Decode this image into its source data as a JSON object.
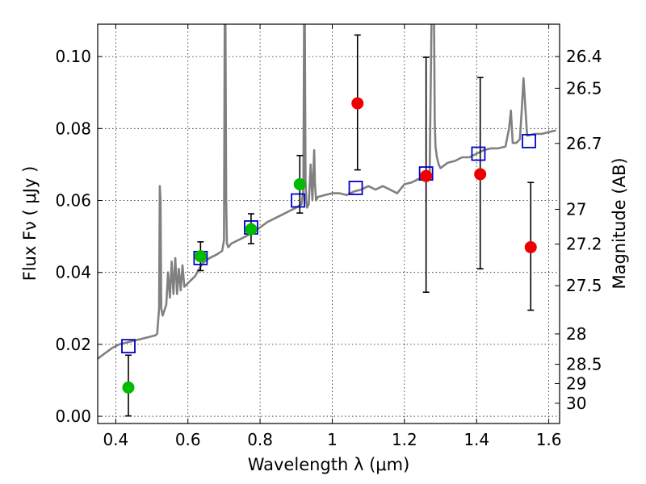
{
  "chart_data": {
    "type": "scatter",
    "xlabel": "Wavelength  λ (μm)",
    "ylabel": "Flux  Fν  ( μJy )",
    "ylabel_right": "Magnitude (AB)",
    "xlim": [
      0.35,
      1.63
    ],
    "ylim": [
      -0.002,
      0.109
    ],
    "x_ticks": [
      "0.4",
      "0.6",
      "0.8",
      "1",
      "1.2",
      "1.4",
      "1.6"
    ],
    "x_tick_values": [
      0.4,
      0.6,
      0.8,
      1.0,
      1.2,
      1.4,
      1.6
    ],
    "y_ticks": [
      "0.00",
      "0.02",
      "0.04",
      "0.06",
      "0.08",
      "0.10"
    ],
    "y_tick_values": [
      0,
      0.02,
      0.04,
      0.06,
      0.08,
      0.1
    ],
    "right_ticks": [
      "26.4",
      "26.5",
      "26.7",
      "27",
      "27.2",
      "27.5",
      "28",
      "28.5",
      "29",
      "30"
    ],
    "right_tick_values": [
      26.4,
      26.5,
      26.7,
      27,
      27.2,
      27.5,
      28,
      28.5,
      29,
      30
    ],
    "grid": true,
    "colors": {
      "spectrum": "#808080",
      "model_box": "#0000cc",
      "green": "#00bb00",
      "red": "#ee0000",
      "errorbar": "#000000"
    },
    "series": [
      {
        "kind": "spectrum",
        "x": [
          0.35,
          0.37,
          0.39,
          0.41,
          0.43,
          0.45,
          0.47,
          0.49,
          0.51,
          0.515,
          0.52,
          0.522,
          0.524,
          0.526,
          0.53,
          0.54,
          0.545,
          0.55,
          0.555,
          0.56,
          0.565,
          0.57,
          0.575,
          0.58,
          0.585,
          0.59,
          0.6,
          0.62,
          0.64,
          0.66,
          0.68,
          0.695,
          0.7,
          0.702,
          0.704,
          0.706,
          0.708,
          0.712,
          0.72,
          0.74,
          0.76,
          0.78,
          0.8,
          0.82,
          0.84,
          0.86,
          0.88,
          0.9,
          0.915,
          0.92,
          0.922,
          0.924,
          0.926,
          0.928,
          0.93,
          0.935,
          0.94,
          0.945,
          0.95,
          0.952,
          0.955,
          0.96,
          0.98,
          1.0,
          1.02,
          1.04,
          1.06,
          1.08,
          1.1,
          1.12,
          1.14,
          1.16,
          1.18,
          1.2,
          1.22,
          1.24,
          1.26,
          1.27,
          1.275,
          1.28,
          1.282,
          1.284,
          1.286,
          1.29,
          1.295,
          1.3,
          1.32,
          1.34,
          1.36,
          1.38,
          1.4,
          1.42,
          1.44,
          1.46,
          1.48,
          1.49,
          1.495,
          1.5,
          1.51,
          1.52,
          1.525,
          1.53,
          1.54,
          1.56,
          1.58,
          1.6,
          1.62
        ],
        "y": [
          0.016,
          0.0175,
          0.019,
          0.02,
          0.0205,
          0.021,
          0.0215,
          0.022,
          0.0225,
          0.023,
          0.03,
          0.064,
          0.06,
          0.03,
          0.028,
          0.031,
          0.04,
          0.033,
          0.043,
          0.034,
          0.044,
          0.034,
          0.041,
          0.035,
          0.042,
          0.036,
          0.037,
          0.039,
          0.0425,
          0.044,
          0.045,
          0.046,
          0.049,
          0.11,
          0.11,
          0.06,
          0.048,
          0.047,
          0.048,
          0.049,
          0.05,
          0.051,
          0.0525,
          0.054,
          0.055,
          0.056,
          0.057,
          0.058,
          0.059,
          0.063,
          0.11,
          0.11,
          0.065,
          0.06,
          0.058,
          0.059,
          0.07,
          0.06,
          0.074,
          0.065,
          0.06,
          0.061,
          0.0615,
          0.062,
          0.062,
          0.0615,
          0.0625,
          0.063,
          0.064,
          0.063,
          0.064,
          0.063,
          0.062,
          0.0645,
          0.065,
          0.066,
          0.067,
          0.068,
          0.11,
          0.11,
          0.11,
          0.082,
          0.075,
          0.072,
          0.07,
          0.069,
          0.0705,
          0.071,
          0.072,
          0.072,
          0.073,
          0.074,
          0.0745,
          0.0745,
          0.075,
          0.08,
          0.085,
          0.076,
          0.076,
          0.077,
          0.085,
          0.094,
          0.078,
          0.0785,
          0.0785,
          0.079,
          0.0795
        ]
      },
      {
        "kind": "model",
        "marker": "open-square",
        "x": [
          0.435,
          0.635,
          0.775,
          0.905,
          1.065,
          1.26,
          1.405,
          1.545
        ],
        "y": [
          0.0195,
          0.044,
          0.0525,
          0.06,
          0.0635,
          0.0675,
          0.073,
          0.0765
        ]
      },
      {
        "kind": "measurement",
        "marker": "filled-circle",
        "color_key": "green",
        "x": [
          0.435,
          0.635,
          0.775,
          0.91
        ],
        "y": [
          0.008,
          0.0445,
          0.052,
          0.0645
        ],
        "yerr_low": [
          0.0001,
          0.0405,
          0.048,
          0.0565
        ],
        "yerr_high": [
          0.017,
          0.0485,
          0.0563,
          0.0725
        ]
      },
      {
        "kind": "measurement",
        "marker": "filled-circle",
        "color_key": "red",
        "x": [
          1.07,
          1.26,
          1.41,
          1.55
        ],
        "y": [
          0.087,
          0.0668,
          0.0673,
          0.047
        ],
        "yerr_low": [
          0.0685,
          0.0345,
          0.041,
          0.0295
        ],
        "yerr_high": [
          0.106,
          0.0998,
          0.0942,
          0.065
        ]
      }
    ]
  }
}
